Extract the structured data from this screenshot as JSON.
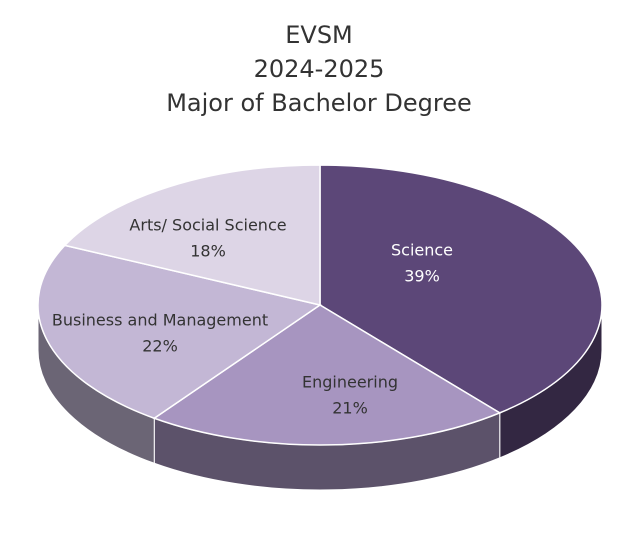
{
  "chart_data": {
    "type": "pie3d",
    "title": [
      "EVSM",
      "2024-2025",
      "Major of Bachelor Degree"
    ],
    "categories": [
      "Science",
      "Engineering",
      "Business and Management",
      "Arts/ Social Science"
    ],
    "values": [
      39,
      21,
      22,
      18
    ],
    "value_labels": [
      "39%",
      "21%",
      "22%",
      "18%"
    ],
    "colors": [
      "#5c4778",
      "#a795c0",
      "#c3b7d5",
      "#ddd5e6"
    ],
    "label_colors": [
      "#ffffff",
      "#333333",
      "#333333",
      "#333333"
    ]
  }
}
